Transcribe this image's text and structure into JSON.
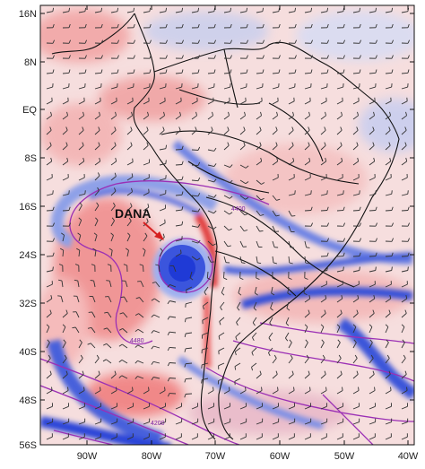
{
  "map": {
    "lat_labels": [
      "16N",
      "8N",
      "EQ",
      "8S",
      "16S",
      "24S",
      "32S",
      "40S",
      "48S",
      "56S"
    ],
    "lon_labels": [
      "90W",
      "80W",
      "70W",
      "60W",
      "50W",
      "40W"
    ],
    "lat_range": [
      16,
      -56
    ],
    "lon_range": [
      -98,
      -40
    ],
    "annotation": {
      "label": "DANA",
      "arrow_color": "#d62020"
    },
    "contour_labels": [
      "4400",
      "4480",
      "4200"
    ],
    "colors": {
      "positive": "#ee4b4b",
      "negative": "#2b45d8",
      "contour": "#9b2fb5",
      "coastline": "#111111",
      "barb": "#333333"
    }
  }
}
